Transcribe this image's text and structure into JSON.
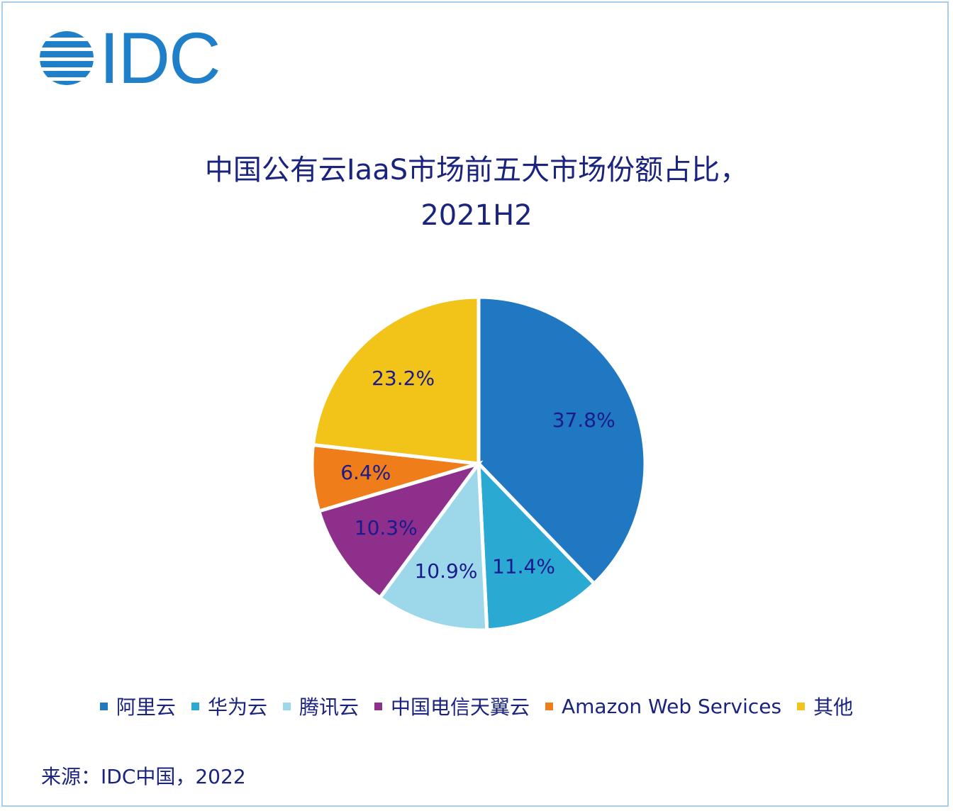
{
  "logo": "IDC",
  "chart_data": {
    "type": "pie",
    "title": "中国公有云IaaS市场前五大市场份额占比，2021H2",
    "categories": [
      "阿里云",
      "华为云",
      "腾讯云",
      "中国电信天翼云",
      "Amazon Web Services",
      "其他"
    ],
    "values": [
      37.8,
      11.4,
      10.9,
      10.3,
      6.4,
      23.2
    ],
    "value_labels": [
      "37.8%",
      "11.4%",
      "10.9%",
      "10.3%",
      "6.4%",
      "23.2%"
    ],
    "colors": [
      "#1f78c1",
      "#2aa9d2",
      "#9dd8ea",
      "#8e2f8b",
      "#ee7d1a",
      "#f2c318"
    ],
    "source": "来源：IDC中国，2022"
  }
}
